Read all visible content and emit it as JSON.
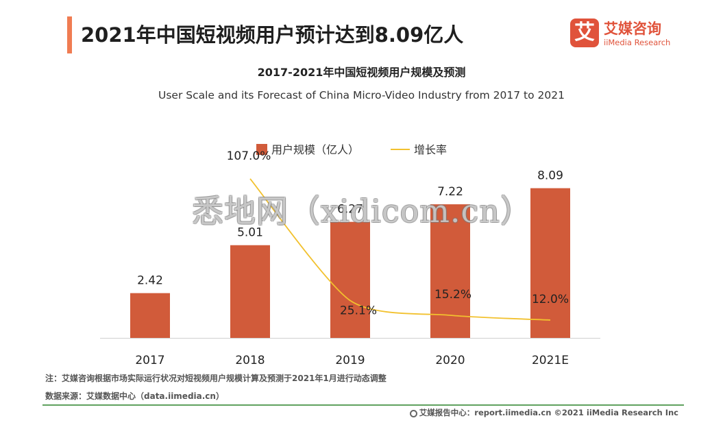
{
  "header": {
    "title": "2021年中国短视频用户预计达到8.09亿人"
  },
  "brand": {
    "mark": "艾",
    "name_cn": "艾媒咨询",
    "name_en": "iiMedia Research",
    "color": "#e0533b"
  },
  "chart_data": {
    "type": "bar",
    "title": "2017-2021年中国短视频用户规模及预测",
    "subtitle": "User Scale and its Forecast of China Micro-Video Industry from 2017 to 2021",
    "categories": [
      "2017",
      "2018",
      "2019",
      "2020",
      "2021E"
    ],
    "series": [
      {
        "name": "用户规模（亿人）",
        "type": "bar",
        "color": "#d15b3a",
        "axis": "left",
        "values": [
          2.42,
          5.01,
          6.27,
          7.22,
          8.09
        ],
        "labels": [
          "2.42",
          "5.01",
          "6.27",
          "7.22",
          "8.09"
        ]
      },
      {
        "name": "增长率",
        "type": "line",
        "color": "#f2c12e",
        "axis": "right",
        "values": [
          null,
          107.0,
          25.1,
          15.2,
          12.0
        ],
        "labels": [
          "",
          "107.0%",
          "25.1%",
          "15.2%",
          "12.0%"
        ]
      }
    ],
    "ylim_left": [
      0,
      10
    ],
    "ylim_right": [
      0,
      120
    ],
    "grid": false,
    "legend": "top-center"
  },
  "footnotes": {
    "note": "注：艾媒咨询根据市场实际运行状况对短视频用户规模计算及预测于2021年1月进行动态调整",
    "source": "数据来源：艾媒数据中心（data.iimedia.cn）"
  },
  "footer": {
    "text": "艾媒报告中心：report.iimedia.cn ©2021 iiMedia Research Inc"
  },
  "watermark": "悉地网（xidicom.cn）"
}
